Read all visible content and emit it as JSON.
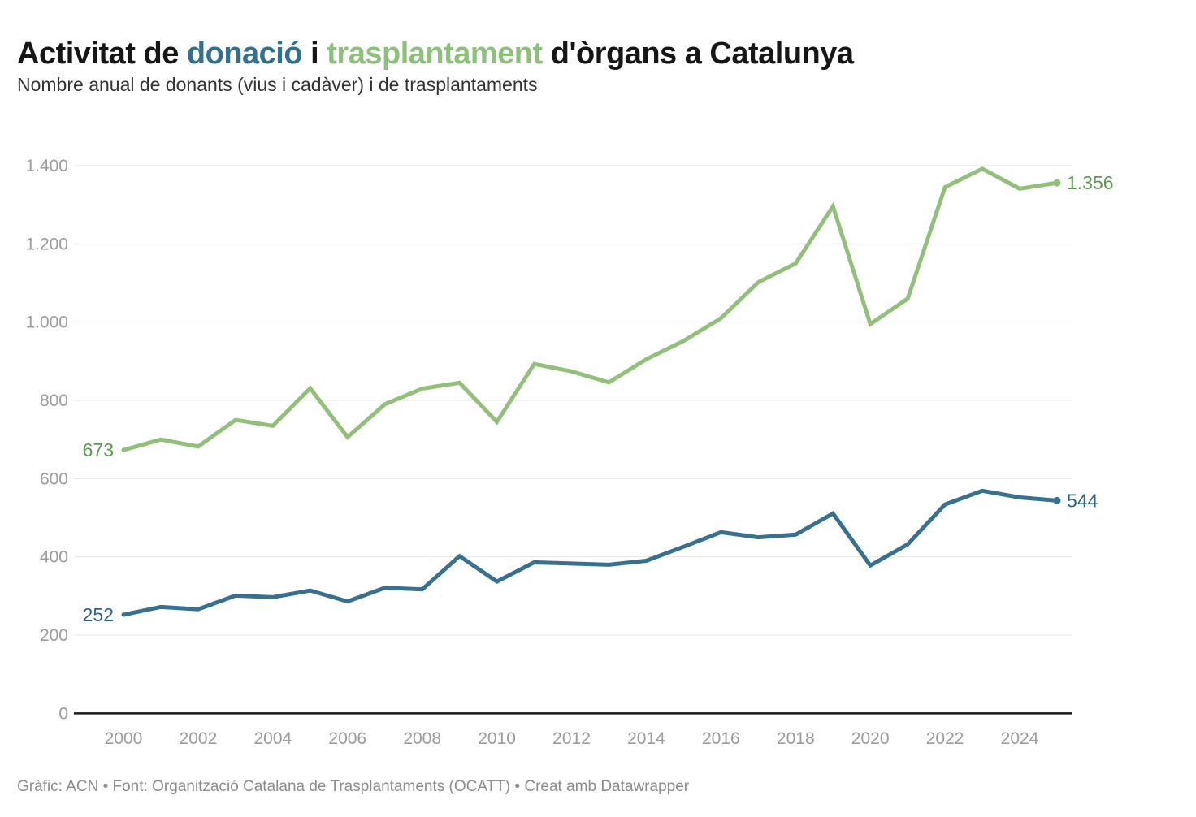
{
  "header": {
    "title_prefix": "Activitat de ",
    "title_donacio": "donació",
    "title_middle": " i ",
    "title_trasplantament": "trasplantament",
    "title_suffix": " d'òrgans a Catalunya",
    "subtitle": "Nombre anual de donants (vius i cadàver) i de trasplantaments"
  },
  "footer": {
    "text": "Gràfic: ACN • Font: Organització Catalana de Trasplantaments (OCATT) • Creat amb Datawrapper"
  },
  "colors": {
    "transplants_line": "#92c07a",
    "transplants_label": "#5a9a4c",
    "donors_line": "#37718f",
    "donors_label": "#2a6585",
    "grid": "#e4e4e4",
    "axis": "#1a1a1a",
    "tick_text": "#9b9b9b"
  },
  "chart_data": {
    "type": "line",
    "title": "Activitat de donació i trasplantament d'òrgans a Catalunya",
    "subtitle": "Nombre anual de donants (vius i cadàver) i de trasplantaments",
    "xlabel": "",
    "ylabel": "",
    "xlim": [
      2000,
      2025
    ],
    "ylim": [
      0,
      1400
    ],
    "grid": true,
    "legend_position": "inline value labels at line starts and ends",
    "x": [
      2000,
      2001,
      2002,
      2003,
      2004,
      2005,
      2006,
      2007,
      2008,
      2009,
      2010,
      2011,
      2012,
      2013,
      2014,
      2015,
      2016,
      2017,
      2018,
      2019,
      2020,
      2021,
      2022,
      2023,
      2024,
      2025
    ],
    "series": [
      {
        "key": "transplants",
        "name": "Trasplantaments",
        "values": [
          673,
          700,
          682,
          750,
          735,
          831,
          706,
          790,
          830,
          845,
          745,
          893,
          874,
          846,
          905,
          952,
          1010,
          1102,
          1150,
          1296,
          995,
          1060,
          1345,
          1392,
          1341,
          1356
        ],
        "first_label": "673",
        "last_label": "1.356"
      },
      {
        "key": "donors",
        "name": "Donants (vius i cadàver)",
        "values": [
          252,
          272,
          266,
          301,
          297,
          314,
          286,
          321,
          317,
          402,
          337,
          386,
          383,
          380,
          390,
          426,
          463,
          450,
          457,
          511,
          378,
          432,
          534,
          569,
          552,
          544
        ],
        "first_label": "252",
        "last_label": "544"
      }
    ],
    "y_ticks": [
      {
        "value": 0,
        "label": "0"
      },
      {
        "value": 200,
        "label": "200"
      },
      {
        "value": 400,
        "label": "400"
      },
      {
        "value": 600,
        "label": "600"
      },
      {
        "value": 800,
        "label": "800"
      },
      {
        "value": 1000,
        "label": "1.000"
      },
      {
        "value": 1200,
        "label": "1.200"
      },
      {
        "value": 1400,
        "label": "1.400"
      }
    ],
    "x_ticks": [
      {
        "value": 2000,
        "label": "2000"
      },
      {
        "value": 2002,
        "label": "2002"
      },
      {
        "value": 2004,
        "label": "2004"
      },
      {
        "value": 2006,
        "label": "2006"
      },
      {
        "value": 2008,
        "label": "2008"
      },
      {
        "value": 2010,
        "label": "2010"
      },
      {
        "value": 2012,
        "label": "2012"
      },
      {
        "value": 2014,
        "label": "2014"
      },
      {
        "value": 2016,
        "label": "2016"
      },
      {
        "value": 2018,
        "label": "2018"
      },
      {
        "value": 2020,
        "label": "2020"
      },
      {
        "value": 2022,
        "label": "2022"
      },
      {
        "value": 2024,
        "label": "2024"
      }
    ]
  }
}
